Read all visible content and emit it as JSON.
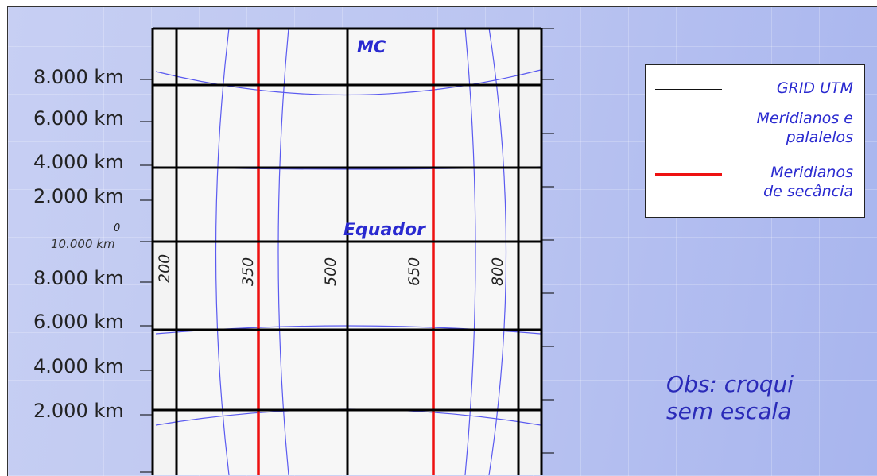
{
  "labels": {
    "mc": "MC",
    "equator": "Equador",
    "zero": "0",
    "ten_thousand": "10.000 km"
  },
  "y_labels_north": [
    "8.000 km",
    "6.000 km",
    "4.000 km",
    "2.000 km"
  ],
  "y_labels_south": [
    "8.000 km",
    "6.000 km",
    "4.000 km",
    "2.000 km"
  ],
  "easting_labels": [
    "200",
    "350",
    "500",
    "650",
    "800"
  ],
  "legend": {
    "grid": "GRID UTM",
    "meridians_line1": "Meridianos e",
    "meridians_line2": "palalelos",
    "secant_line1": "Meridianos",
    "secant_line2": "de secância"
  },
  "note": {
    "line1": "Obs: croqui",
    "line2": "sem escala"
  },
  "colors": {
    "grid": "#000000",
    "meridians": "#5a5af0",
    "secant": "#ee1111",
    "label_blue": "#2a2ad0"
  }
}
